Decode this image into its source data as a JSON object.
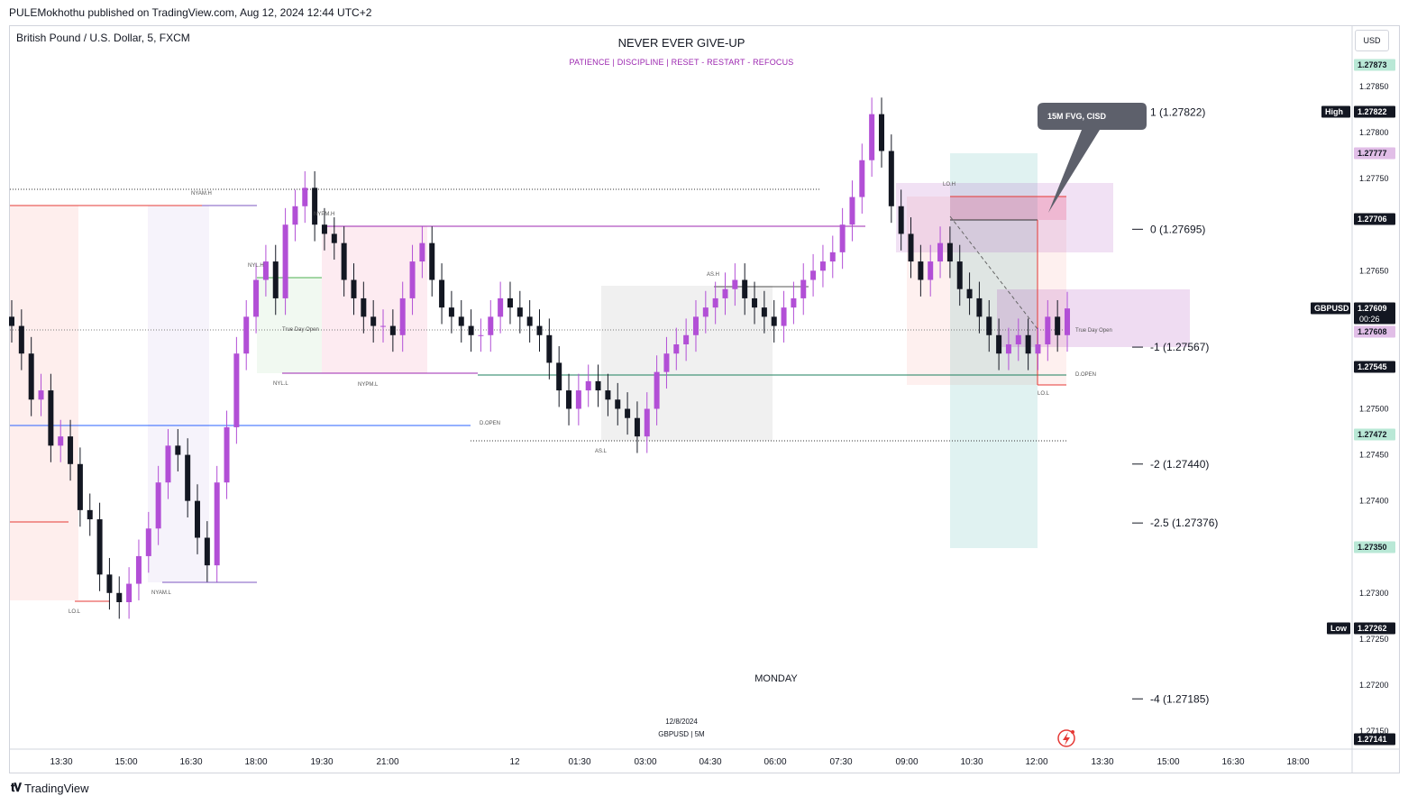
{
  "header": {
    "publish_line": "PULEMokhothu published on TradingView.com, Aug 12, 2024 12:44 UTC+2",
    "symbol_title": "British Pound / U.S. Dollar, 5, FXCM",
    "banner_title": "NEVER EVER GIVE-UP",
    "banner_subtitle": "PATIENCE   |   DISCIPLINE   |   RESET - RESTART - REFOCUS",
    "currency": "USD",
    "footer_brand": "TradingView"
  },
  "colors": {
    "bull": "#b24fd6",
    "bear": "#131722",
    "accent": "#9c27b0",
    "teal_zone": "#26a69a",
    "red_line": "#e53935",
    "blue_line": "#2962ff",
    "green_line": "#1b7f5c"
  },
  "chart_data": {
    "type": "candlestick",
    "symbol": "GBPUSD",
    "timeframe": "5",
    "ylim": [
      1.27141,
      1.27873
    ],
    "x_ticks": [
      "13:30",
      "15:00",
      "16:30",
      "18:00",
      "19:30",
      "21:00",
      "12",
      "01:30",
      "03:00",
      "04:30",
      "06:00",
      "07:30",
      "09:00",
      "10:30",
      "12:00",
      "13:30",
      "15:00",
      "16:30",
      "18:00"
    ],
    "y_ticks": [
      "1.27850",
      "1.27800",
      "1.27750",
      "1.27650",
      "1.27500",
      "1.27450",
      "1.27400",
      "1.27300",
      "1.27250",
      "1.27200",
      "1.27150"
    ],
    "price_badges": [
      {
        "value": "1.27873",
        "style": "green"
      },
      {
        "value": "1.27822",
        "style": "dark",
        "tag": "High"
      },
      {
        "value": "1.27777",
        "style": "purple"
      },
      {
        "value": "1.27706",
        "style": "dark"
      },
      {
        "value": "1.27609",
        "style": "dark",
        "tag": "GBPUSD",
        "sub": "00:26"
      },
      {
        "value": "1.27608",
        "style": "purple"
      },
      {
        "value": "1.27545",
        "style": "dark"
      },
      {
        "value": "1.27472",
        "style": "green"
      },
      {
        "value": "1.27350",
        "style": "green"
      },
      {
        "value": "1.27262",
        "style": "dark",
        "tag": "Low"
      },
      {
        "value": "1.27141",
        "style": "dark"
      }
    ],
    "fib_levels": [
      {
        "label": "1 (1.27822)",
        "price": 1.27822
      },
      {
        "label": "0 (1.27695)",
        "price": 1.27695
      },
      {
        "label": "-1 (1.27567)",
        "price": 1.27567
      },
      {
        "label": "-2 (1.27440)",
        "price": 1.2744
      },
      {
        "label": "-2.5 (1.27376)",
        "price": 1.27376
      },
      {
        "label": "-4 (1.27185)",
        "price": 1.27185
      }
    ],
    "annotations": {
      "callout": "15M FVG, CISD",
      "session_labels": [
        "NYAM.H",
        "NYL.H",
        "NYPM.H",
        "NYL.L",
        "NYPM.L",
        "NYAM.L",
        "LO.L",
        "AS.H",
        "AS.L",
        "D.OPEN",
        "LO.H",
        "LO.L",
        "D.OPEN",
        "True Day Open",
        "True Day Open"
      ],
      "day_label": "MONDAY",
      "date_caption": "12/8/2024",
      "pair_caption": "GBPUSD | 5M"
    },
    "candles_close_path": [
      1.2759,
      1.2756,
      1.2751,
      1.2752,
      1.2746,
      1.2747,
      1.2744,
      1.2739,
      1.2738,
      1.2732,
      1.273,
      1.2729,
      1.2731,
      1.2734,
      1.2737,
      1.2742,
      1.2746,
      1.2745,
      1.274,
      1.2736,
      1.2733,
      1.2742,
      1.2748,
      1.2756,
      1.276,
      1.2764,
      1.2766,
      1.2762,
      1.277,
      1.2772,
      1.2774,
      1.277,
      1.2769,
      1.2768,
      1.2764,
      1.2762,
      1.276,
      1.2759,
      1.2759,
      1.2758,
      1.2762,
      1.2766,
      1.2768,
      1.2764,
      1.2761,
      1.276,
      1.2759,
      1.2758,
      1.2758,
      1.276,
      1.2762,
      1.2761,
      1.276,
      1.2759,
      1.2758,
      1.2755,
      1.2752,
      1.275,
      1.2752,
      1.2753,
      1.2752,
      1.2751,
      1.275,
      1.2749,
      1.2747,
      1.275,
      1.2754,
      1.2756,
      1.2757,
      1.2758,
      1.276,
      1.2761,
      1.2762,
      1.2763,
      1.2764,
      1.2762,
      1.2761,
      1.276,
      1.2759,
      1.2761,
      1.2762,
      1.2764,
      1.2765,
      1.2766,
      1.2767,
      1.277,
      1.2773,
      1.2777,
      1.2782,
      1.2778,
      1.2772,
      1.2769,
      1.2766,
      1.2764,
      1.2766,
      1.2768,
      1.2766,
      1.2763,
      1.2762,
      1.276,
      1.2758,
      1.2756,
      1.2757,
      1.2758,
      1.2756,
      1.2757,
      1.276,
      1.2758,
      1.27609
    ]
  }
}
